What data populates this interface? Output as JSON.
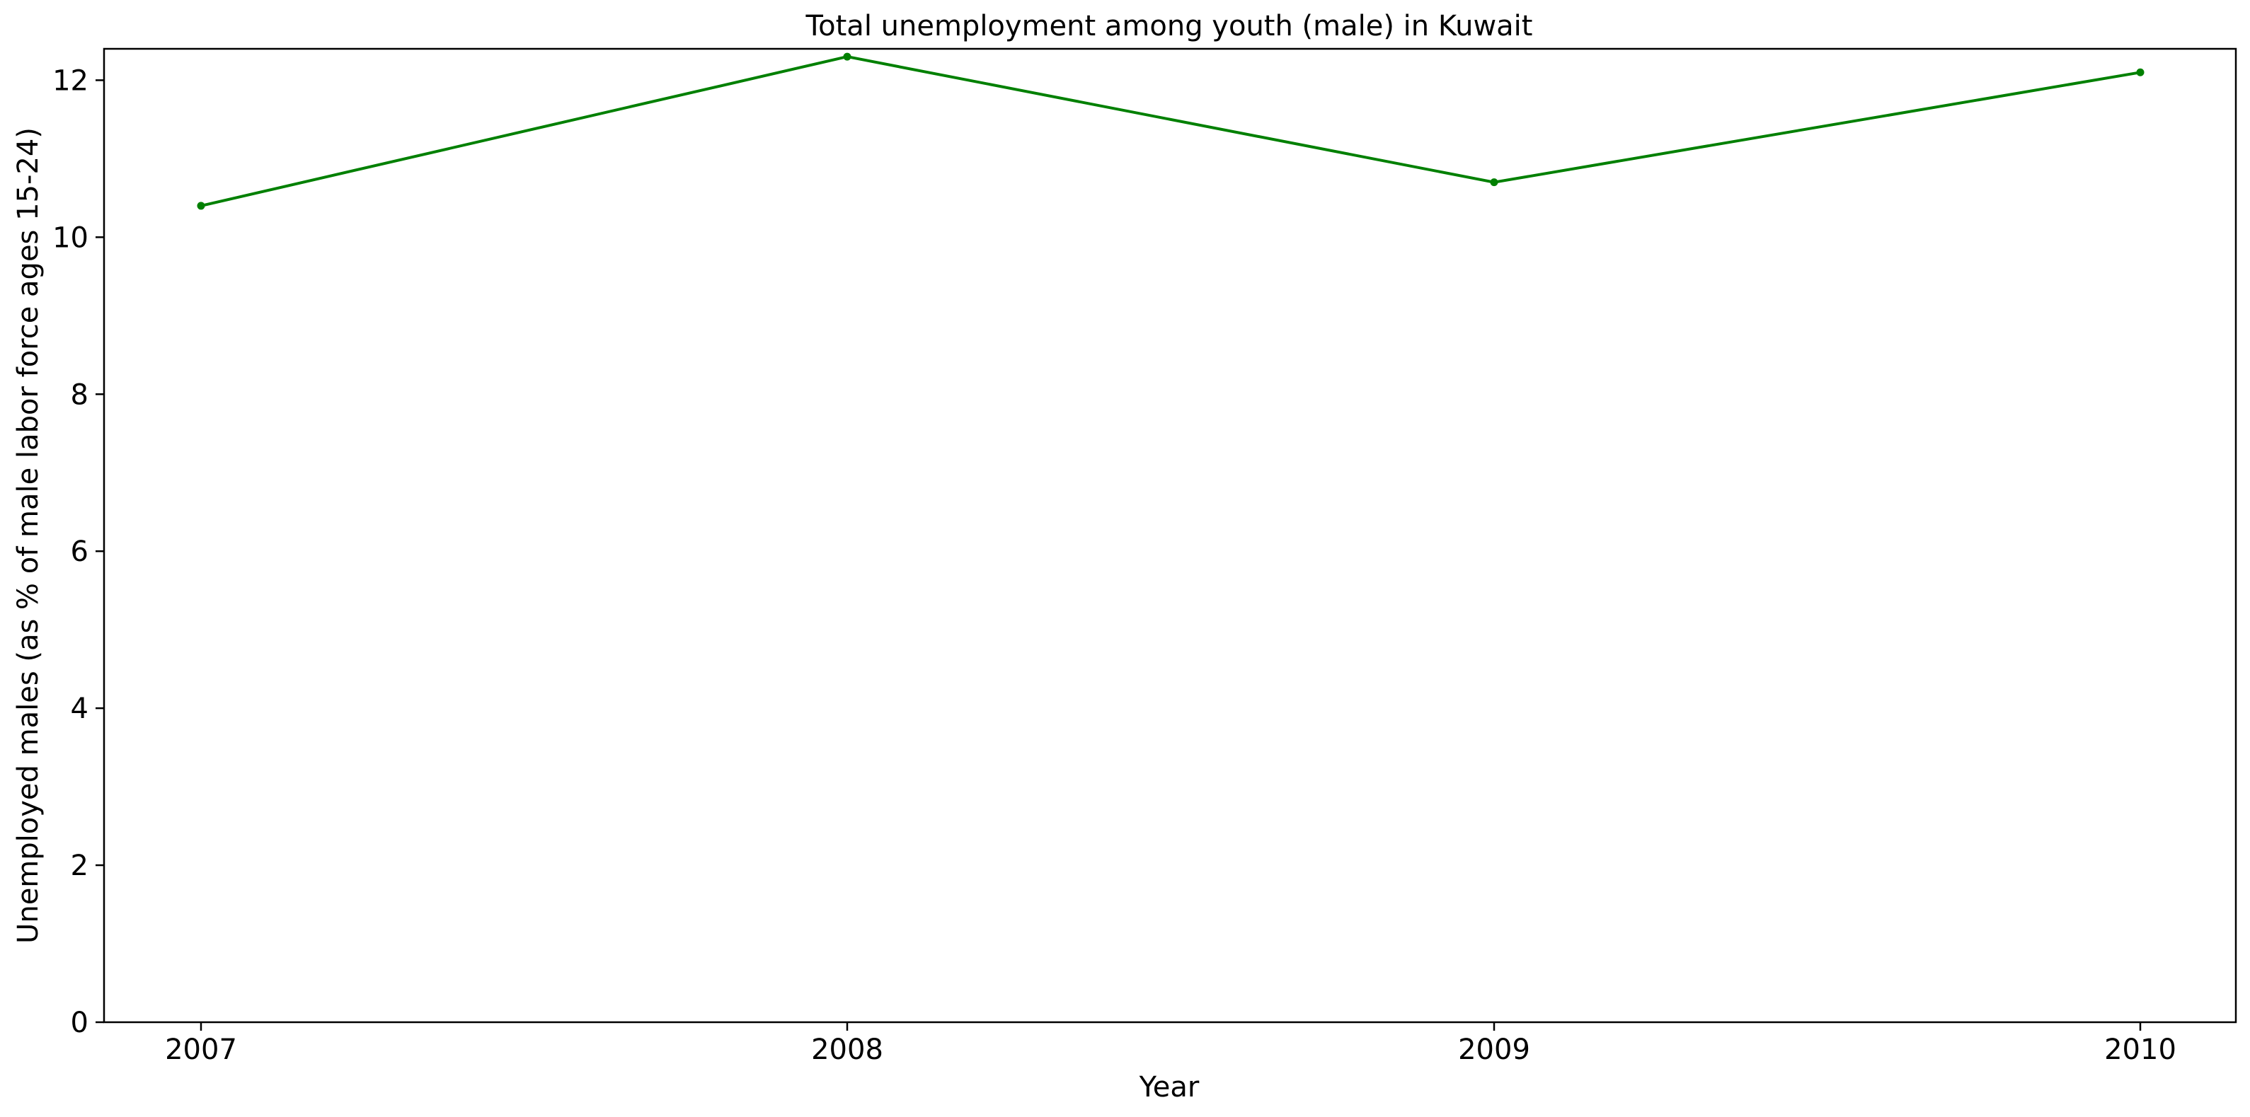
{
  "chart_data": {
    "type": "line",
    "title": "Total unemployment among youth (male) in Kuwait",
    "xlabel": "Year",
    "ylabel": "Unemployed males (as % of male labor force ages 15-24)",
    "x": [
      "2007",
      "2008",
      "2009",
      "2010"
    ],
    "series": [
      {
        "values": [
          10.4,
          12.3,
          10.7,
          12.1
        ],
        "color": "#008000"
      }
    ],
    "xticks": [
      "2007",
      "2008",
      "2009",
      "2010"
    ],
    "yticks": [
      "0",
      "2",
      "4",
      "6",
      "8",
      "10",
      "12"
    ],
    "ylim": [
      0,
      12.4
    ],
    "grid": false,
    "legend": "none"
  }
}
